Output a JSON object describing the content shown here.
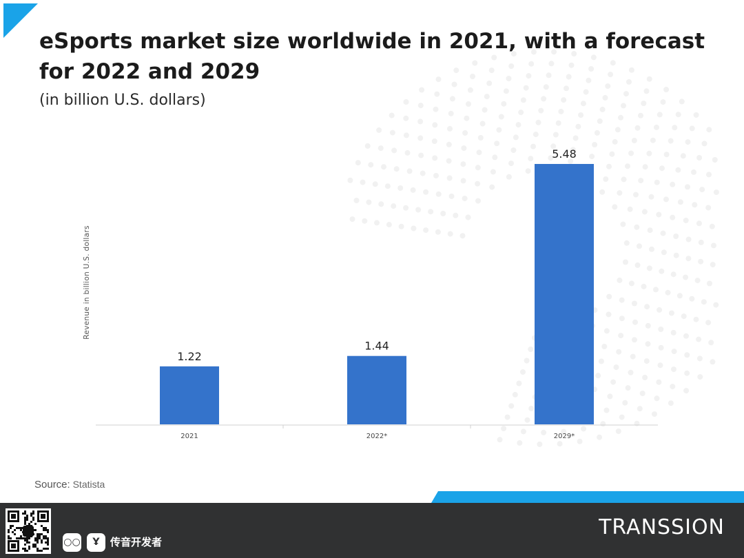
{
  "header": {
    "title": "eSports market size worldwide in 2021, with a forecast for 2022 and 2029",
    "subtitle": "(in billion U.S. dollars)"
  },
  "chart_data": {
    "type": "bar",
    "categories": [
      "2021",
      "2022*",
      "2029*"
    ],
    "values": [
      1.22,
      1.44,
      5.48
    ],
    "value_labels": [
      "1.22",
      "1.44",
      "5.48"
    ],
    "title": "eSports market size worldwide in 2021, with a forecast for 2022 and 2029",
    "subtitle": "(in billion U.S. dollars)",
    "xlabel": "",
    "ylabel": "Revenue in billion U.S. dollars",
    "ylim": [
      0,
      5.48
    ],
    "grid": false,
    "bar_color": "#3473cb"
  },
  "footer": {
    "source_label": "Source:",
    "source_value": "Statista",
    "brand_cn": "传音开发者",
    "brand": "TRANSSION",
    "wechat_icon": "wechat-icon",
    "weibo_icon": "weibo-icon"
  },
  "colors": {
    "accent": "#1aa3e8",
    "footer_bg": "#303132",
    "bar": "#3473cb"
  }
}
